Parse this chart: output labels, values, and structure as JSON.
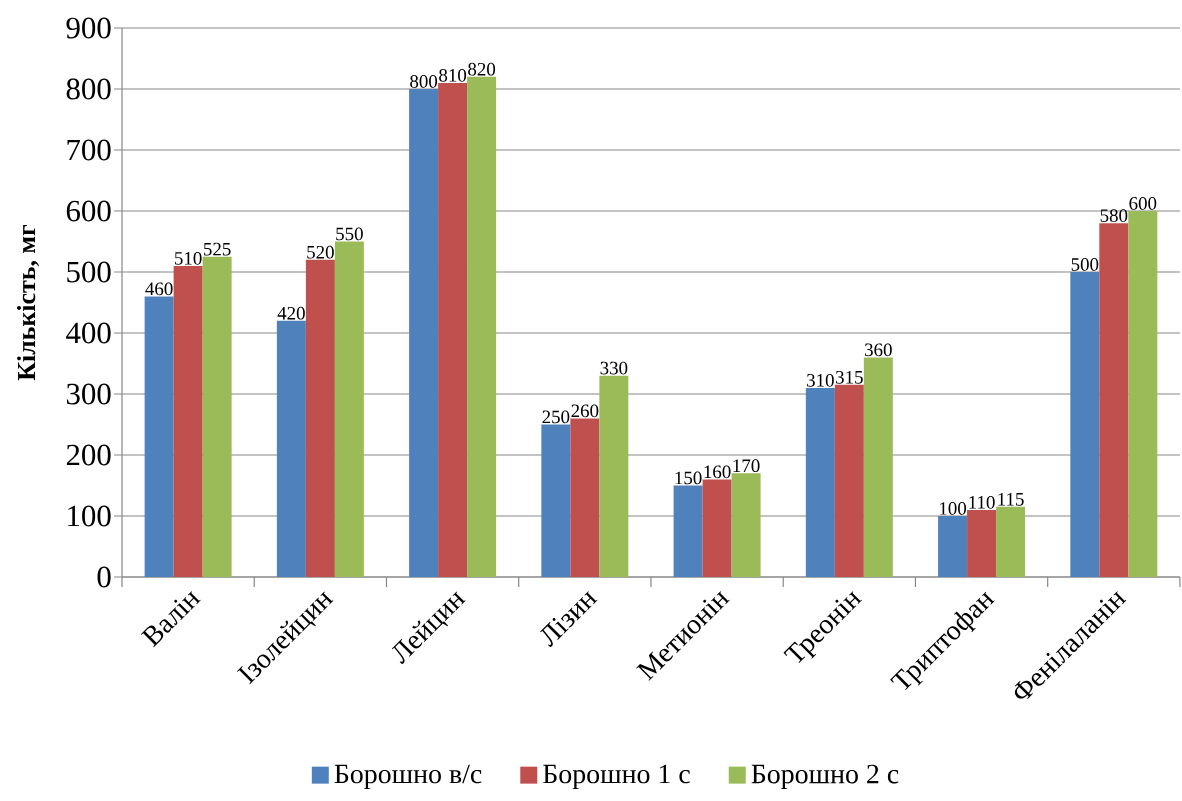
{
  "chart_data": {
    "type": "bar",
    "ylabel": "Кількість, мг",
    "categories": [
      "Валін",
      "Ізолейцин",
      "Лейцин",
      "Лізин",
      "Метионін",
      "Треонін",
      "Триптофан",
      "Фенілаланін"
    ],
    "series": [
      {
        "name": "Борошно в/с",
        "color": "#4f81bd",
        "values": [
          460,
          420,
          800,
          250,
          150,
          310,
          100,
          500
        ]
      },
      {
        "name": "Борошно 1 с",
        "color": "#c0504d",
        "values": [
          510,
          520,
          810,
          260,
          160,
          315,
          110,
          580
        ]
      },
      {
        "name": "Борошно 2 с",
        "color": "#9bbb59",
        "values": [
          525,
          550,
          820,
          330,
          170,
          360,
          115,
          600
        ]
      }
    ],
    "ylim": [
      0,
      900
    ],
    "yticks": [
      0,
      100,
      200,
      300,
      400,
      500,
      600,
      700,
      800,
      900
    ],
    "grid": "y",
    "legend": "bottom",
    "data_labels": true
  }
}
